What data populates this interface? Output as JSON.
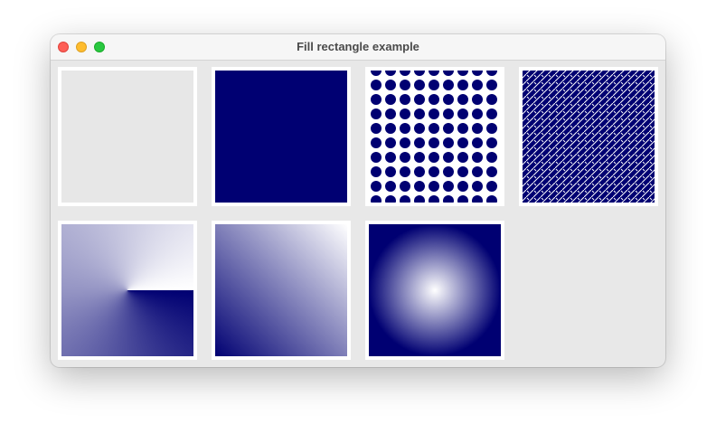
{
  "window": {
    "title": "Fill rectangle example"
  },
  "colors": {
    "fill": "#000072",
    "plain_fill": "#e7e7e7",
    "light": "#ffffff"
  },
  "tiles": [
    {
      "name": "plain-rectangle",
      "fill": "solid-light-gray"
    },
    {
      "name": "solid-rectangle",
      "fill": "solid-navy"
    },
    {
      "name": "dot-pattern-rectangle",
      "fill": "dot-pattern"
    },
    {
      "name": "diagonal-pattern-rectangle",
      "fill": "diagonal-pattern"
    },
    {
      "name": "conical-gradient-rectangle",
      "fill": "conical-gradient"
    },
    {
      "name": "linear-gradient-rectangle",
      "fill": "linear-gradient"
    },
    {
      "name": "radial-gradient-rectangle",
      "fill": "radial-gradient"
    }
  ]
}
